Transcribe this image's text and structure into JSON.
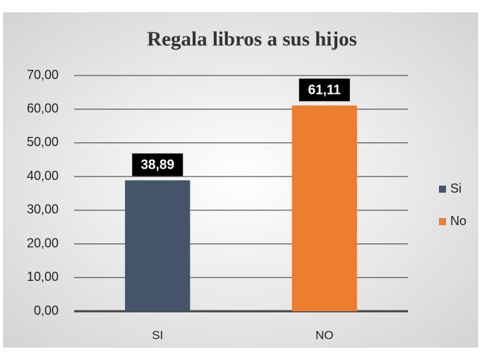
{
  "chart_data": {
    "type": "bar",
    "title": "Regala libros a sus hijos",
    "categories": [
      "SI",
      "NO"
    ],
    "series": [
      {
        "name": "Si",
        "color": "#44546a",
        "values": [
          38.89,
          null
        ],
        "value_labels": [
          "38,89",
          null
        ]
      },
      {
        "name": "No",
        "color": "#ed7d31",
        "values": [
          null,
          61.11
        ],
        "value_labels": [
          null,
          "61,11"
        ]
      }
    ],
    "ylim": [
      0,
      70
    ],
    "yticks": [
      {
        "value": 0,
        "label": "0,00"
      },
      {
        "value": 10,
        "label": "10,00"
      },
      {
        "value": 20,
        "label": "20,00"
      },
      {
        "value": 30,
        "label": "30,00"
      },
      {
        "value": 40,
        "label": "40,00"
      },
      {
        "value": 50,
        "label": "50,00"
      },
      {
        "value": 60,
        "label": "60,00"
      },
      {
        "value": 70,
        "label": "70,00"
      }
    ],
    "grid": true,
    "legend": "right"
  }
}
